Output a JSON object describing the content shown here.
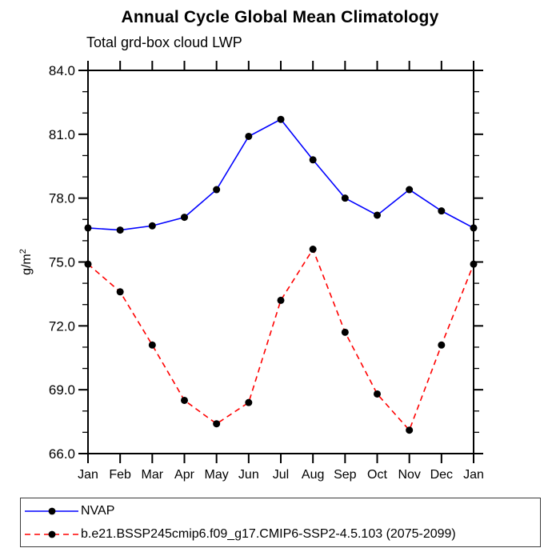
{
  "page": {
    "background": "#ffffff",
    "text_color": "#000000"
  },
  "chart_data": {
    "type": "line",
    "title": "Annual Cycle Global Mean Climatology",
    "subtitle": "Total grd-box cloud LWP",
    "ylabel": "g/m²",
    "xlabel": "",
    "x_categories": [
      "Jan",
      "Feb",
      "Mar",
      "Apr",
      "May",
      "Jun",
      "Jul",
      "Aug",
      "Sep",
      "Oct",
      "Nov",
      "Dec",
      "Jan"
    ],
    "ylim": [
      66.0,
      84.0
    ],
    "y_major_step": 3,
    "y_minor_step": 1,
    "y_tick_labels_top_to_bottom": [
      "84.0",
      "81.0",
      "78.0",
      "75.0",
      "72.0",
      "69.0",
      "66.0"
    ],
    "grid": false,
    "legend_position": "bottom-outside-box",
    "axis_color": "#000000",
    "marker_color": "#000000",
    "series": [
      {
        "name": "NVAP",
        "color": "#0000ff",
        "line_style": "solid",
        "marker": "filled-circle",
        "values": [
          76.6,
          76.5,
          76.7,
          77.1,
          78.4,
          80.9,
          81.7,
          79.8,
          78.0,
          77.2,
          78.4,
          77.4,
          76.6
        ]
      },
      {
        "name": "b.e21.BSSP245cmip6.f09_g17.CMIP6-SSP2-4.5.103 (2075-2099)",
        "color": "#ff0000",
        "line_style": "dashed",
        "marker": "filled-circle",
        "values": [
          74.9,
          73.6,
          71.1,
          68.5,
          67.4,
          68.4,
          73.2,
          75.6,
          71.7,
          68.8,
          67.1,
          71.1,
          74.9
        ]
      }
    ]
  }
}
